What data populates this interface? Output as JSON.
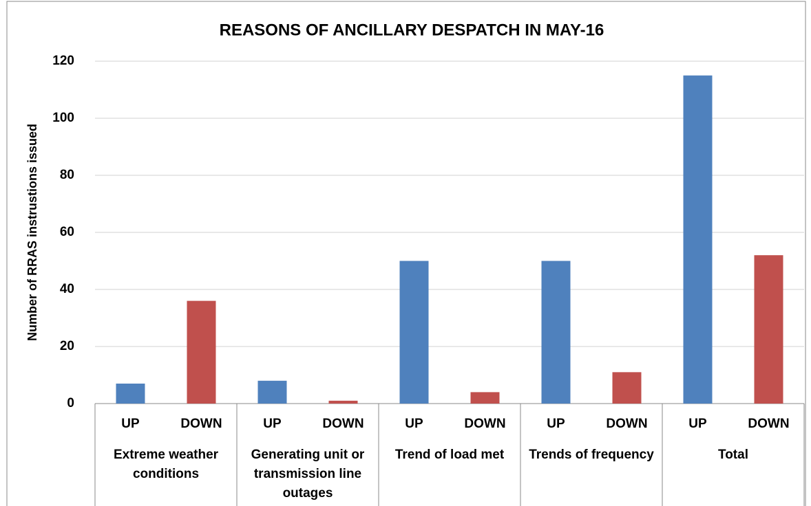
{
  "chart_data": {
    "type": "bar",
    "title": "REASONS OF ANCILLARY DESPATCH IN MAY-16",
    "y_label": "Number of RRAS instrustions issued",
    "groups": [
      "Extreme weather conditions",
      "Generating unit or transmission line outages",
      "Trend of load met",
      "Trends of frequency",
      "Total"
    ],
    "categories": [
      "UP",
      "DOWN",
      "UP",
      "DOWN",
      "UP",
      "DOWN",
      "UP",
      "DOWN",
      "UP",
      "DOWN"
    ],
    "values": [
      7,
      36,
      8,
      1,
      50,
      4,
      50,
      11,
      115,
      52
    ],
    "colors": [
      "#4f81bd",
      "#c0504d",
      "#4f81bd",
      "#c0504d",
      "#4f81bd",
      "#c0504d",
      "#4f81bd",
      "#c0504d",
      "#4f81bd",
      "#c0504d"
    ],
    "ylim": [
      0,
      120
    ],
    "yticks": [
      0,
      20,
      40,
      60,
      80,
      100,
      120
    ],
    "grid": true
  }
}
